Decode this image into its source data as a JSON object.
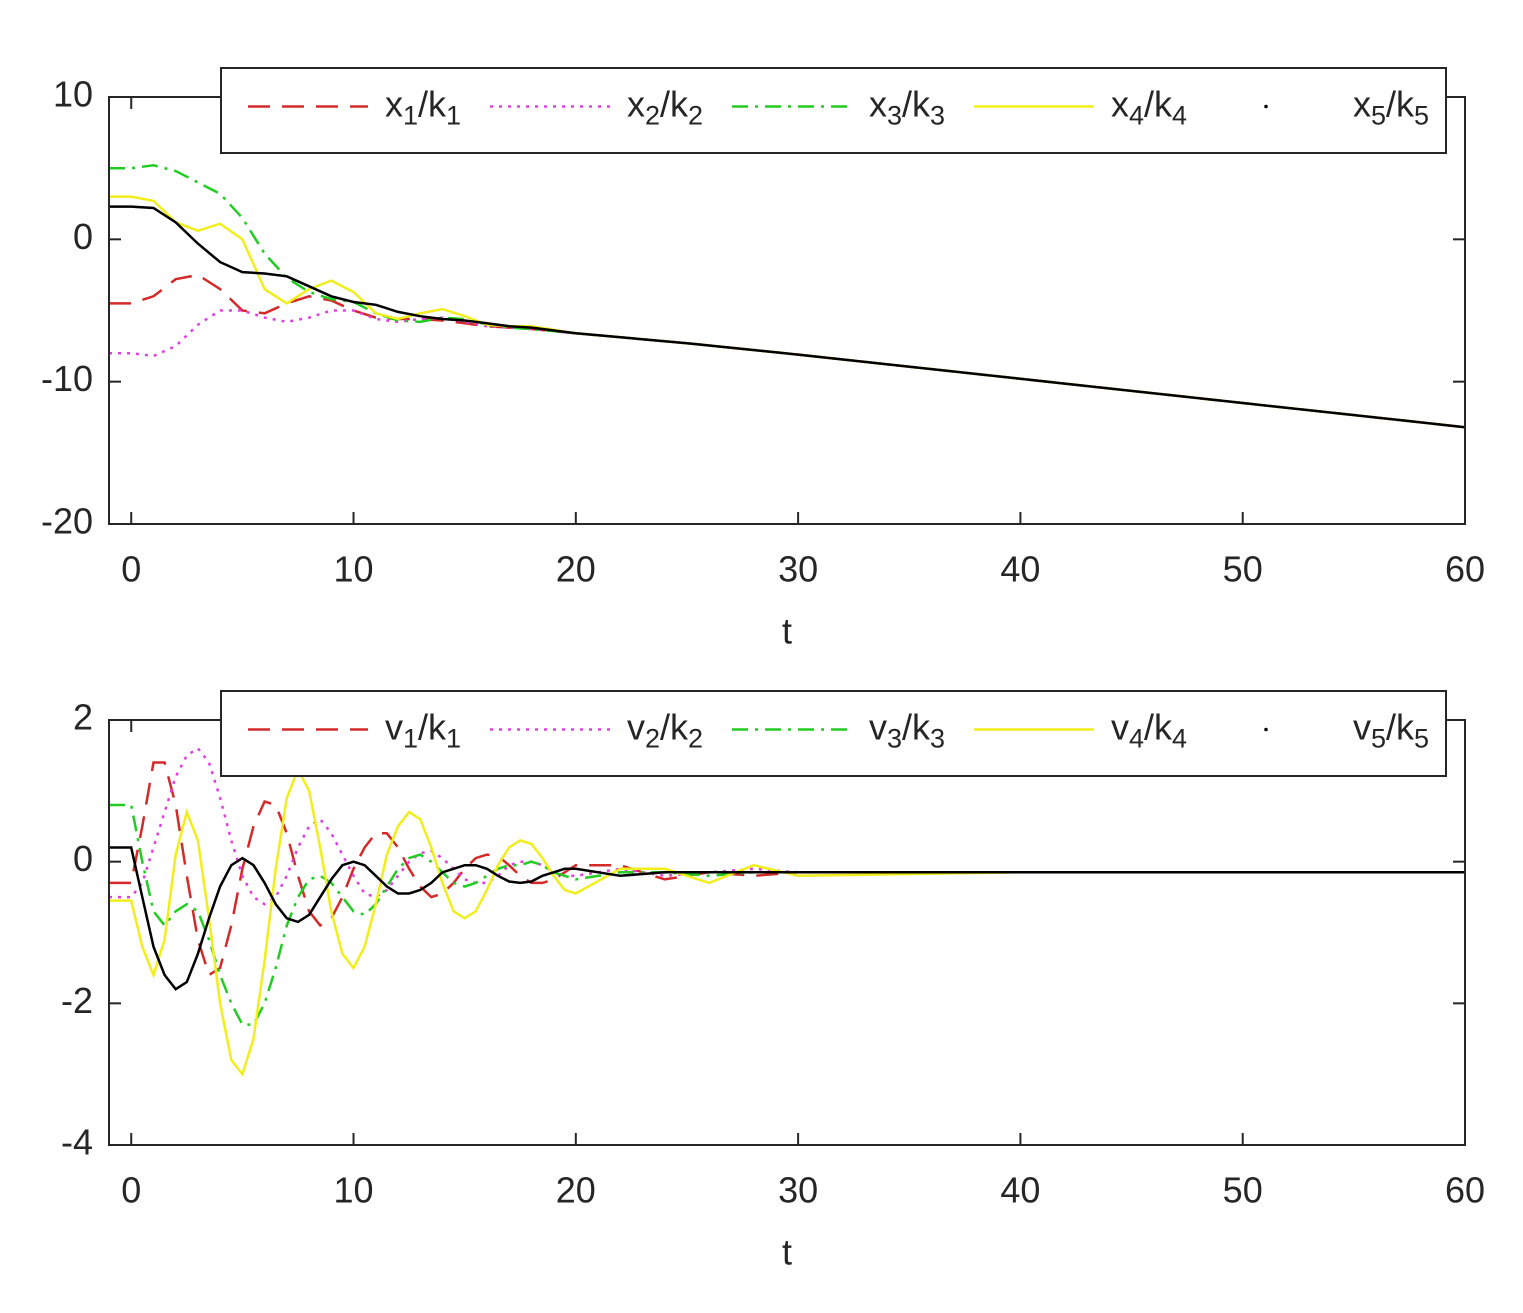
{
  "chart_data": [
    {
      "type": "line",
      "xlabel": "t",
      "legend": "top",
      "x": [
        -1,
        0,
        1,
        2,
        3,
        4,
        5,
        6,
        7,
        8,
        9,
        10,
        11,
        12,
        13,
        14,
        15,
        16,
        17,
        18,
        20,
        25,
        30,
        40,
        50,
        60
      ],
      "xlim": [
        -1,
        60
      ],
      "ylim": [
        -20,
        10
      ],
      "xticks": [
        0,
        10,
        20,
        30,
        40,
        50,
        60
      ],
      "yticks": [
        -20,
        -10,
        0,
        10
      ],
      "series": [
        {
          "name": "x1/k1",
          "color": "#d42a2a",
          "style": "dashed",
          "values": [
            -4.5,
            -4.5,
            -4,
            -2.8,
            -2.5,
            -3.5,
            -5,
            -5.2,
            -4.5,
            -4,
            -4.3,
            -5,
            -5.5,
            -5.6,
            -5.6,
            -5.7,
            -5.9,
            -6.1,
            -6.2,
            -6.3,
            -6.6,
            -7.3,
            -8.1,
            -9.8,
            -11.5,
            -13.2
          ]
        },
        {
          "name": "x2/k2",
          "color": "#e040e0",
          "style": "dotted",
          "values": [
            -8,
            -8,
            -8.2,
            -7.5,
            -6,
            -5,
            -5,
            -5.5,
            -5.8,
            -5.5,
            -5,
            -5,
            -5.6,
            -5.8,
            -5.6,
            -5.5,
            -5.8,
            -6.1,
            -6.2,
            -6.3,
            -6.6,
            -7.3,
            -8.1,
            -9.8,
            -11.5,
            -13.2
          ]
        },
        {
          "name": "x3/k3",
          "color": "#22cc22",
          "style": "dashdot",
          "values": [
            5,
            5,
            5.2,
            4.8,
            4,
            3.2,
            1.5,
            -1,
            -2.7,
            -3.7,
            -4.2,
            -4.4,
            -5.2,
            -5.7,
            -5.8,
            -5.5,
            -5.6,
            -6,
            -6.2,
            -6.3,
            -6.6,
            -7.3,
            -8.1,
            -9.8,
            -11.5,
            -13.2
          ]
        },
        {
          "name": "x4/k4",
          "color": "#f2ee1c",
          "style": "solid",
          "values": [
            3,
            3,
            2.7,
            1.2,
            0.6,
            1.1,
            0,
            -3.5,
            -4.5,
            -3.5,
            -2.9,
            -3.7,
            -5.2,
            -5.6,
            -5.2,
            -4.9,
            -5.4,
            -6,
            -6.1,
            -6.1,
            -6.6,
            -7.3,
            -8.1,
            -9.8,
            -11.5,
            -13.2
          ]
        },
        {
          "name": "x5/k5",
          "color": "#000000",
          "style": "point",
          "values": [
            2.3,
            2.3,
            2.2,
            1.2,
            -0.3,
            -1.6,
            -2.3,
            -2.4,
            -2.6,
            -3.3,
            -4,
            -4.4,
            -4.6,
            -5.1,
            -5.4,
            -5.6,
            -5.7,
            -5.9,
            -6.1,
            -6.2,
            -6.6,
            -7.3,
            -8.1,
            -9.8,
            -11.5,
            -13.2
          ]
        }
      ]
    },
    {
      "type": "line",
      "xlabel": "t",
      "legend": "top",
      "x": [
        -1,
        -0.5,
        0,
        0.5,
        1,
        1.5,
        2,
        2.5,
        3,
        3.5,
        4,
        4.5,
        5,
        5.5,
        6,
        6.5,
        7,
        7.5,
        8,
        8.5,
        9,
        9.5,
        10,
        10.5,
        11,
        11.5,
        12,
        12.5,
        13,
        13.5,
        14,
        14.5,
        15,
        15.5,
        16,
        16.5,
        17,
        17.5,
        18,
        18.5,
        19,
        19.5,
        20,
        22,
        24,
        26,
        28,
        30,
        40,
        50,
        60
      ],
      "xlim": [
        -1,
        60
      ],
      "ylim": [
        -4,
        2
      ],
      "xticks": [
        0,
        10,
        20,
        30,
        40,
        50,
        60
      ],
      "yticks": [
        -4,
        -2,
        0,
        2
      ],
      "series": [
        {
          "name": "v1/k1",
          "color": "#d42a2a",
          "style": "dashed",
          "values": [
            -0.3,
            -0.3,
            -0.3,
            0.5,
            1.4,
            1.4,
            0.8,
            -0.2,
            -1.1,
            -1.6,
            -1.5,
            -0.9,
            -0.1,
            0.5,
            0.85,
            0.8,
            0.4,
            -0.2,
            -0.7,
            -0.9,
            -0.8,
            -0.5,
            -0.1,
            0.2,
            0.4,
            0.4,
            0.2,
            -0.1,
            -0.35,
            -0.5,
            -0.45,
            -0.3,
            -0.1,
            0.05,
            0.1,
            0.08,
            -0.05,
            -0.2,
            -0.3,
            -0.3,
            -0.25,
            -0.15,
            -0.05,
            -0.05,
            -0.25,
            -0.15,
            -0.2,
            -0.15,
            -0.15,
            -0.15,
            -0.15
          ]
        },
        {
          "name": "v2/k2",
          "color": "#e040e0",
          "style": "dotted",
          "values": [
            -0.5,
            -0.5,
            -0.5,
            -0.3,
            0.2,
            0.7,
            1.2,
            1.5,
            1.6,
            1.4,
            0.9,
            0.3,
            -0.2,
            -0.5,
            -0.6,
            -0.5,
            -0.2,
            0.2,
            0.5,
            0.6,
            0.4,
            0.1,
            -0.2,
            -0.45,
            -0.5,
            -0.4,
            -0.2,
            0,
            0.12,
            0.15,
            0.05,
            -0.1,
            -0.25,
            -0.3,
            -0.3,
            -0.2,
            -0.05,
            0,
            0,
            -0.05,
            -0.15,
            -0.2,
            -0.2,
            -0.1,
            -0.2,
            -0.15,
            -0.1,
            -0.15,
            -0.15,
            -0.15,
            -0.15
          ]
        },
        {
          "name": "v3/k3",
          "color": "#22cc22",
          "style": "dashdot",
          "values": [
            0.8,
            0.8,
            0.8,
            0,
            -0.7,
            -0.9,
            -0.7,
            -0.6,
            -0.7,
            -1.1,
            -1.6,
            -2,
            -2.3,
            -2.3,
            -2,
            -1.5,
            -0.9,
            -0.5,
            -0.25,
            -0.2,
            -0.3,
            -0.5,
            -0.7,
            -0.75,
            -0.6,
            -0.35,
            -0.1,
            0.05,
            0.1,
            0,
            -0.15,
            -0.3,
            -0.35,
            -0.3,
            -0.2,
            -0.1,
            -0.05,
            -0.05,
            0,
            -0.05,
            -0.15,
            -0.2,
            -0.25,
            -0.15,
            -0.15,
            -0.2,
            -0.15,
            -0.15,
            -0.15,
            -0.15,
            -0.15
          ]
        },
        {
          "name": "v4/k4",
          "color": "#f2ee1c",
          "style": "solid",
          "values": [
            -0.55,
            -0.55,
            -0.55,
            -1.2,
            -1.6,
            -1.1,
            0.1,
            0.7,
            0.3,
            -0.8,
            -2,
            -2.8,
            -3,
            -2.5,
            -1.4,
            -0.1,
            0.9,
            1.3,
            1,
            0.2,
            -0.7,
            -1.3,
            -1.5,
            -1.2,
            -0.6,
            0.1,
            0.5,
            0.7,
            0.6,
            0.2,
            -0.3,
            -0.7,
            -0.8,
            -0.7,
            -0.4,
            -0.05,
            0.2,
            0.3,
            0.25,
            0.05,
            -0.2,
            -0.4,
            -0.45,
            -0.1,
            -0.1,
            -0.3,
            -0.05,
            -0.2,
            -0.15,
            -0.15,
            -0.15
          ]
        },
        {
          "name": "v5/k5",
          "color": "#000000",
          "style": "point",
          "values": [
            0.2,
            0.2,
            0.2,
            -0.5,
            -1.2,
            -1.6,
            -1.8,
            -1.7,
            -1.3,
            -0.8,
            -0.35,
            -0.05,
            0.05,
            -0.05,
            -0.3,
            -0.6,
            -0.8,
            -0.85,
            -0.75,
            -0.5,
            -0.25,
            -0.05,
            0,
            -0.05,
            -0.2,
            -0.35,
            -0.45,
            -0.45,
            -0.4,
            -0.3,
            -0.15,
            -0.1,
            -0.05,
            -0.05,
            -0.1,
            -0.2,
            -0.28,
            -0.3,
            -0.28,
            -0.2,
            -0.15,
            -0.1,
            -0.1,
            -0.2,
            -0.15,
            -0.15,
            -0.15,
            -0.15,
            -0.15,
            -0.15,
            -0.15
          ]
        }
      ]
    }
  ]
}
